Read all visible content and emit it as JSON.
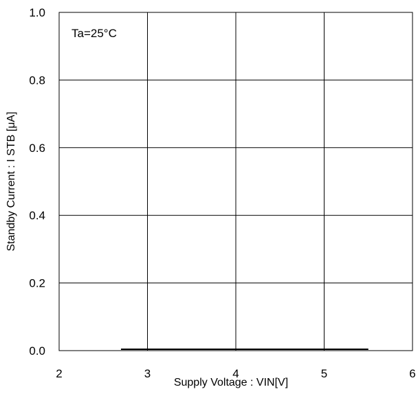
{
  "chart_data": {
    "type": "line",
    "title": "",
    "xlabel": "Supply Voltage : VIN[V]",
    "ylabel": "Standby Current : I  STB [μA]",
    "xlim": [
      2,
      6
    ],
    "ylim": [
      0.0,
      1.0
    ],
    "xticks": [
      "2",
      "3",
      "4",
      "5",
      "6"
    ],
    "yticks": [
      "0.0",
      "0.2",
      "0.4",
      "0.6",
      "0.8",
      "1.0"
    ],
    "grid": true,
    "annotation": "Ta=25°C",
    "series": [
      {
        "x": [
          2.7,
          5.5
        ],
        "y": [
          0.0,
          0.0
        ],
        "color": "#000000"
      }
    ]
  }
}
